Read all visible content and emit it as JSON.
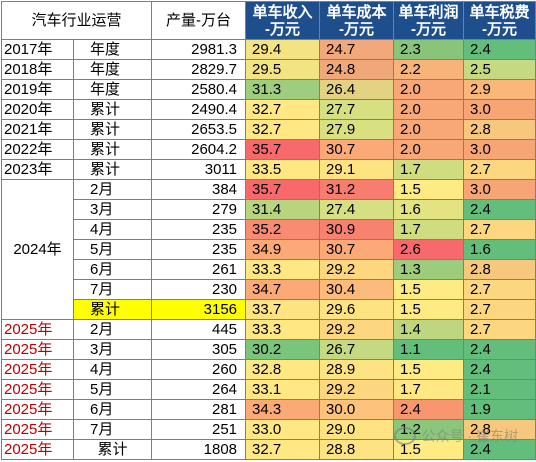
{
  "headers": {
    "first": "汽车行业运营",
    "production": "产量-万台",
    "income": "单车收入\n-万元",
    "cost": "单车成本\n-万元",
    "profit": "单车利润\n-万元",
    "tax": "单车税费\n-万元"
  },
  "year_2024_label": "2024年",
  "rows": [
    {
      "year": "2017年",
      "period": "年度",
      "prod": "2981.3",
      "income": "29.4",
      "cost": "24.7",
      "profit": "2.3",
      "tax": "2.4",
      "ci": "#f3e383",
      "cc": "#f2a87b",
      "cp": "#88c57a",
      "ct": "#63be7b"
    },
    {
      "year": "2018年",
      "period": "年度",
      "prod": "2829.7",
      "income": "29.5",
      "cost": "24.8",
      "profit": "2.2",
      "tax": "2.5",
      "ci": "#f2e383",
      "cc": "#f0a87b",
      "cp": "#f8b37b",
      "ct": "#c4d981"
    },
    {
      "year": "2019年",
      "period": "年度",
      "prod": "2580.4",
      "income": "31.3",
      "cost": "26.4",
      "profit": "2.0",
      "tax": "2.9",
      "ci": "#9fcd7e",
      "cc": "#e3d282",
      "cp": "#f8a877",
      "ct": "#f9b879"
    },
    {
      "year": "2020年",
      "period": "累计",
      "prod": "2490.4",
      "income": "32.7",
      "cost": "27.7",
      "profit": "2.0",
      "tax": "3.0",
      "ci": "#ffe784",
      "cc": "#d6df81",
      "cp": "#f8a877",
      "ct": "#f8a576"
    },
    {
      "year": "2021年",
      "period": "累计",
      "prod": "2653.5",
      "income": "32.7",
      "cost": "27.9",
      "profit": "2.0",
      "tax": "2.8",
      "ci": "#ffe784",
      "cc": "#d9e081",
      "cp": "#f8a877",
      "ct": "#f7c77d"
    },
    {
      "year": "2022年",
      "period": "累计",
      "prod": "2604.2",
      "income": "35.7",
      "cost": "30.7",
      "profit": "2.0",
      "tax": "3.0",
      "ci": "#f8696b",
      "cc": "#fbaa77",
      "cp": "#f8a877",
      "ct": "#f8a576"
    },
    {
      "year": "2023年",
      "period": "累计",
      "prod": "3011",
      "income": "33.5",
      "cost": "29.1",
      "profit": "1.7",
      "tax": "2.7",
      "ci": "#ffe784",
      "cc": "#fee382",
      "cp": "#cfdc80",
      "ct": "#fdd680"
    }
  ],
  "months_2024": [
    {
      "period": "2月",
      "prod": "384",
      "income": "35.7",
      "cost": "31.2",
      "profit": "1.5",
      "tax": "3.0",
      "ci": "#f8696b",
      "cc": "#f87d6f",
      "cp": "#ffeb84",
      "ct": "#f8a576"
    },
    {
      "period": "3月",
      "prod": "279",
      "income": "31.4",
      "cost": "27.4",
      "profit": "1.6",
      "tax": "2.4",
      "ci": "#b8d47f",
      "cc": "#d6df81",
      "cp": "#e4e382",
      "ct": "#63be7b"
    },
    {
      "period": "4月",
      "prod": "235",
      "income": "35.2",
      "cost": "30.9",
      "profit": "1.7",
      "tax": "2.7",
      "ci": "#f98b72",
      "cc": "#f8826f",
      "cp": "#cfdc80",
      "ct": "#fdd680"
    },
    {
      "period": "5月",
      "prod": "235",
      "income": "34.9",
      "cost": "30.7",
      "profit": "2.6",
      "tax": "1.6",
      "ci": "#fbaa77",
      "cc": "#fbaa77",
      "cp": "#f8696b",
      "ct": "#63be7b"
    },
    {
      "period": "6月",
      "prod": "261",
      "income": "33.3",
      "cost": "29.2",
      "profit": "1.3",
      "tax": "2.8",
      "ci": "#ffe784",
      "cc": "#fdd680",
      "cp": "#9ccc7c",
      "ct": "#f7c77d"
    },
    {
      "period": "7月",
      "prod": "230",
      "income": "34.7",
      "cost": "30.4",
      "profit": "1.5",
      "tax": "2.7",
      "ci": "#fbaa77",
      "cc": "#fdbb7b",
      "cp": "#ffeb84",
      "ct": "#fdd680"
    },
    {
      "period": "累计",
      "prod": "3156",
      "income": "33.7",
      "cost": "29.6",
      "profit": "1.5",
      "tax": "2.7",
      "ci": "#fee382",
      "cc": "#fee382",
      "cp": "#ffeb84",
      "ct": "#fdd680",
      "hl": true
    }
  ],
  "rows_2025": [
    {
      "year": "2025年",
      "period": "2月",
      "prod": "445",
      "income": "33.3",
      "cost": "29.2",
      "profit": "1.4",
      "tax": "2.7",
      "ci": "#ffe784",
      "cc": "#fdd680",
      "cp": "#bed680",
      "ct": "#fdd680"
    },
    {
      "year": "2025年",
      "period": "3月",
      "prod": "305",
      "income": "30.2",
      "cost": "26.7",
      "profit": "1.1",
      "tax": "2.4",
      "ci": "#7ac47c",
      "cc": "#c4d981",
      "cp": "#63be7b",
      "ct": "#63be7b"
    },
    {
      "year": "2025年",
      "period": "4月",
      "prod": "260",
      "income": "32.8",
      "cost": "28.9",
      "profit": "1.5",
      "tax": "2.4",
      "ci": "#ffe784",
      "cc": "#fee382",
      "cp": "#ffeb84",
      "ct": "#63be7b"
    },
    {
      "year": "2025年",
      "period": "5月",
      "prod": "264",
      "income": "33.1",
      "cost": "29.2",
      "profit": "1.7",
      "tax": "2.1",
      "ci": "#ffe784",
      "cc": "#fdd680",
      "cp": "#ffe784",
      "ct": "#63be7b"
    },
    {
      "year": "2025年",
      "period": "6月",
      "prod": "281",
      "income": "34.3",
      "cost": "30.0",
      "profit": "2.4",
      "tax": "1.9",
      "ci": "#fbaa77",
      "cc": "#fdc27c",
      "cp": "#f8966f",
      "ct": "#63be7b"
    },
    {
      "year": "2025年",
      "period": "7月",
      "prod": "251",
      "income": "33.0",
      "cost": "29.0",
      "profit": "1.2",
      "tax": "2.8",
      "ci": "#ffe784",
      "cc": "#fee382",
      "cp": "#8bc77b",
      "ct": "#f7c77d"
    },
    {
      "year": "2025年",
      "period": "累计",
      "prod": "1808",
      "income": "32.7",
      "cost": "28.8",
      "profit": "1.5",
      "tax": "2.4",
      "ci": "#ffe784",
      "cc": "#fee382",
      "cp": "#ffeb84",
      "ct": "#63be7b",
      "center": true
    }
  ],
  "watermark": "公众号 · 崔东树"
}
